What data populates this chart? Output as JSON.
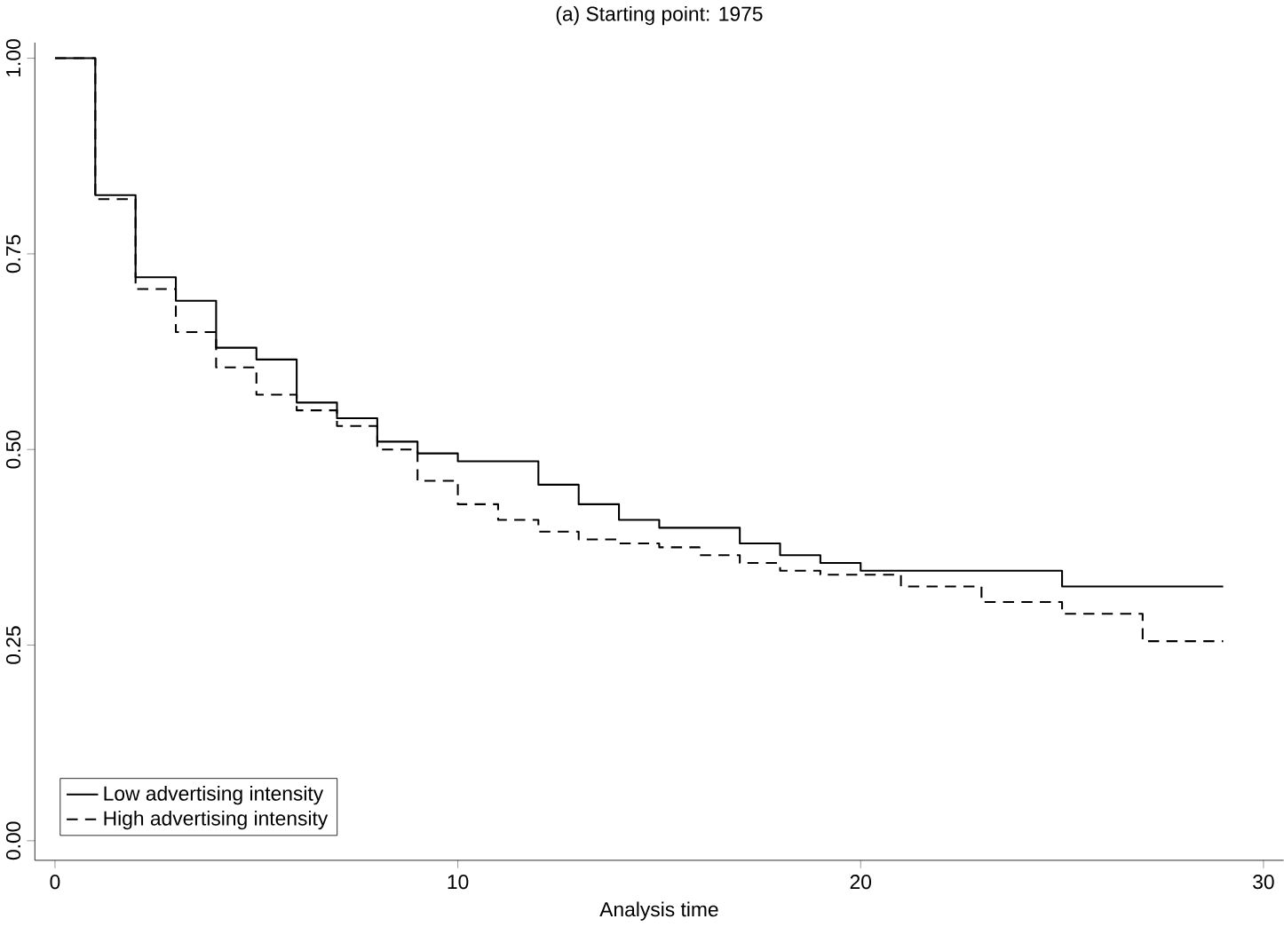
{
  "chart_data": {
    "type": "step",
    "title": "(a) Starting point: 1975",
    "xlabel": "Analysis time",
    "xlim": [
      -0.5,
      30.5
    ],
    "ylim": [
      -0.025,
      1.02
    ],
    "xticks": [
      0,
      10,
      20,
      30
    ],
    "yticks": [
      {
        "value": 0,
        "label": "0.00"
      },
      {
        "value": 0.25,
        "label": "0.25"
      },
      {
        "value": 0.5,
        "label": "0.50"
      },
      {
        "value": 0.75,
        "label": "0.75"
      },
      {
        "value": 1,
        "label": "1.00"
      }
    ],
    "grid": false,
    "legend": "bottom left",
    "series": [
      {
        "name": "Low advertising intensity",
        "color": "#000000",
        "line_style": "solid",
        "x": [
          0,
          1,
          2,
          3,
          4,
          5,
          6,
          7,
          8,
          9,
          10,
          12,
          13,
          14,
          15,
          17,
          18,
          19,
          20,
          25,
          29
        ],
        "values": [
          1.0,
          0.825,
          0.72,
          0.69,
          0.63,
          0.615,
          0.56,
          0.54,
          0.51,
          0.495,
          0.485,
          0.455,
          0.43,
          0.41,
          0.4,
          0.38,
          0.365,
          0.355,
          0.345,
          0.325,
          0.325
        ]
      },
      {
        "name": "High advertising intensity",
        "color": "#000000",
        "line_style": "dashed",
        "x": [
          0,
          1,
          2,
          3,
          4,
          5,
          6,
          7,
          8,
          9,
          10,
          11,
          12,
          13,
          14,
          15,
          16,
          17,
          18,
          19,
          21,
          23,
          25,
          27,
          29
        ],
        "values": [
          1.0,
          0.82,
          0.705,
          0.65,
          0.605,
          0.57,
          0.55,
          0.53,
          0.5,
          0.46,
          0.43,
          0.41,
          0.395,
          0.385,
          0.38,
          0.375,
          0.365,
          0.355,
          0.345,
          0.34,
          0.325,
          0.305,
          0.29,
          0.255,
          0.255
        ]
      }
    ]
  }
}
